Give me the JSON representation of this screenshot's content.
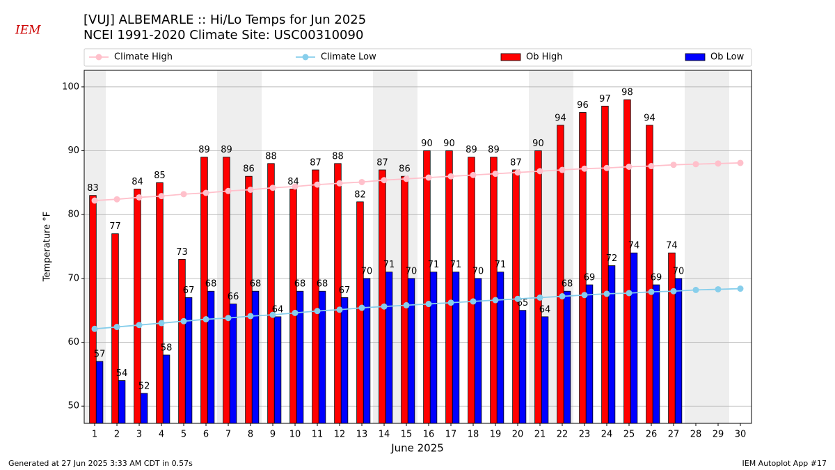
{
  "chart_data": {
    "type": "bar_line",
    "title": "[VUJ] ALBEMARLE :: Hi/Lo Temps for Jun 2025",
    "subtitle": "NCEI 1991-2020 Climate Site: USC00310090",
    "logo_text": "IEM",
    "x_label": "June 2025",
    "y_label": "Temperature °F",
    "footer_left": "Generated at 27 Jun 2025 3:33 AM CDT in 0.57s",
    "footer_right": "IEM Autoplot App #17",
    "x": [
      1,
      2,
      3,
      4,
      5,
      6,
      7,
      8,
      9,
      10,
      11,
      12,
      13,
      14,
      15,
      16,
      17,
      18,
      19,
      20,
      21,
      22,
      23,
      24,
      25,
      26,
      27,
      28,
      29,
      30
    ],
    "xlim": [
      0.53,
      30.5
    ],
    "xticks": [
      1,
      2,
      3,
      4,
      5,
      6,
      7,
      8,
      9,
      10,
      11,
      12,
      13,
      14,
      15,
      16,
      17,
      18,
      19,
      20,
      21,
      22,
      23,
      24,
      25,
      26,
      27,
      28,
      29,
      30
    ],
    "ylim": [
      47.3,
      102.6
    ],
    "yticks": [
      50,
      60,
      70,
      80,
      90,
      100
    ],
    "grid": true,
    "shaded_days": [
      1,
      7,
      8,
      14,
      15,
      21,
      22,
      28,
      29
    ],
    "series": [
      {
        "name": "Climate High",
        "kind": "line",
        "color": "#ffc0cb",
        "values": [
          82.2,
          82.4,
          82.7,
          82.9,
          83.2,
          83.4,
          83.7,
          83.9,
          84.2,
          84.4,
          84.7,
          84.9,
          85.1,
          85.4,
          85.6,
          85.8,
          86.0,
          86.2,
          86.4,
          86.6,
          86.8,
          87.0,
          87.2,
          87.3,
          87.5,
          87.6,
          87.8,
          87.9,
          88.0,
          88.1
        ]
      },
      {
        "name": "Climate Low",
        "kind": "line",
        "color": "#87ceeb",
        "values": [
          62.1,
          62.4,
          62.7,
          63.0,
          63.3,
          63.6,
          63.8,
          64.1,
          64.3,
          64.6,
          64.9,
          65.1,
          65.4,
          65.6,
          65.8,
          66.0,
          66.2,
          66.4,
          66.6,
          66.8,
          67.0,
          67.2,
          67.4,
          67.6,
          67.7,
          67.9,
          68.0,
          68.2,
          68.3,
          68.4
        ]
      },
      {
        "name": "Ob High",
        "kind": "bar",
        "color": "#ff0000",
        "values": [
          83,
          77,
          84,
          85,
          73,
          89,
          89,
          86,
          88,
          84,
          87,
          88,
          82,
          87,
          86,
          90,
          90,
          89,
          89,
          87,
          90,
          94,
          96,
          97,
          98,
          94,
          74,
          null,
          null,
          null
        ]
      },
      {
        "name": "Ob Low",
        "kind": "bar",
        "color": "#0000ff",
        "values": [
          57,
          54,
          52,
          58,
          67,
          68,
          66,
          68,
          64,
          68,
          68,
          67,
          70,
          71,
          70,
          71,
          71,
          70,
          71,
          65,
          64,
          68,
          69,
          72,
          74,
          69,
          70,
          null,
          null,
          null
        ]
      }
    ]
  }
}
